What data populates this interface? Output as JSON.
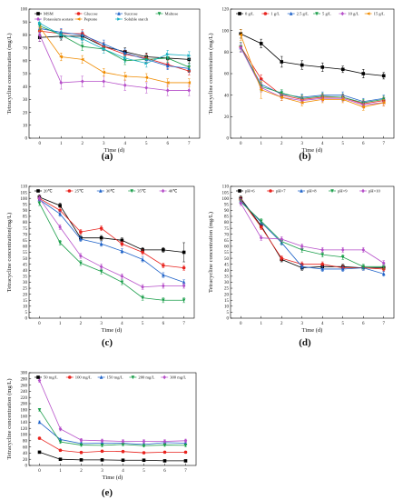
{
  "figure": {
    "panels": [
      "(a)",
      "(b)",
      "(c)",
      "(d)",
      "(e)"
    ]
  },
  "chart_data": [
    {
      "type": "line",
      "panel": "(a)",
      "xlabel": "Time (d)",
      "ylabel": "Tetracycline concentration (mg/L)",
      "x": [
        0,
        1,
        2,
        3,
        4,
        5,
        6,
        7
      ],
      "xlim": [
        -0.5,
        7.5
      ],
      "ylim": [
        0,
        100
      ],
      "yticks": [
        0,
        10,
        20,
        30,
        40,
        50,
        60,
        70,
        80,
        90,
        100
      ],
      "legend_position": "top",
      "legend_columns": 4,
      "series": [
        {
          "name": "MSM",
          "color": "#000000",
          "marker": "square",
          "values": [
            78,
            79,
            79,
            71,
            67,
            63,
            62,
            61
          ],
          "error": [
            3,
            3,
            3,
            3,
            3,
            3,
            3,
            3
          ]
        },
        {
          "name": "Glucose",
          "color": "#e8231e",
          "marker": "circle",
          "values": [
            83,
            81,
            81,
            71,
            65,
            62,
            57,
            52
          ],
          "error": [
            3,
            3,
            3,
            3,
            3,
            3,
            3,
            3
          ]
        },
        {
          "name": "Sucrose",
          "color": "#1f63c9",
          "marker": "triangle",
          "values": [
            85,
            82,
            80,
            73,
            66,
            61,
            56,
            54
          ],
          "error": [
            3,
            3,
            3,
            3,
            3,
            3,
            3,
            3
          ]
        },
        {
          "name": "Maltose",
          "color": "#1a9e4a",
          "marker": "triangle-down",
          "values": [
            87,
            80,
            71,
            69,
            60,
            61,
            62,
            55
          ],
          "error": [
            3,
            3,
            3,
            3,
            3,
            3,
            3,
            3
          ]
        },
        {
          "name": "Potassium acetate",
          "color": "#b64fc9",
          "marker": "diamond",
          "values": [
            80,
            43,
            44,
            44,
            41,
            39,
            37,
            37
          ],
          "error": [
            5,
            5,
            4,
            4,
            4,
            4,
            4,
            4
          ]
        },
        {
          "name": "Peptone",
          "color": "#f08c00",
          "marker": "triangle-left",
          "values": [
            86,
            63,
            61,
            51,
            48,
            47,
            43,
            43
          ],
          "error": [
            3,
            3,
            3,
            3,
            3,
            3,
            3,
            3
          ]
        },
        {
          "name": "Soluble starch",
          "color": "#17b0c4",
          "marker": "triangle-right",
          "values": [
            89,
            80,
            77,
            69,
            62,
            58,
            65,
            64
          ],
          "error": [
            3,
            3,
            3,
            3,
            3,
            3,
            3,
            3
          ]
        }
      ]
    },
    {
      "type": "line",
      "panel": "(b)",
      "xlabel": "Time (d)",
      "ylabel": "Tetracycline concentration (mg/L)",
      "x": [
        0,
        1,
        2,
        3,
        4,
        5,
        6,
        7
      ],
      "xlim": [
        -0.5,
        7.5
      ],
      "ylim": [
        0,
        120
      ],
      "yticks": [
        0,
        20,
        40,
        60,
        80,
        100,
        120
      ],
      "legend_position": "top",
      "legend_columns": 6,
      "series": [
        {
          "name": "0 g/L",
          "color": "#000000",
          "marker": "square",
          "values": [
            97,
            88,
            71,
            68,
            66,
            64,
            60,
            58
          ],
          "error": [
            4,
            4,
            5,
            4,
            4,
            3,
            4,
            3
          ]
        },
        {
          "name": "1 g/L",
          "color": "#e8231e",
          "marker": "circle",
          "values": [
            85,
            55,
            40,
            36,
            38,
            38,
            32,
            35
          ],
          "error": [
            4,
            4,
            3,
            3,
            3,
            3,
            3,
            3
          ]
        },
        {
          "name": "2.5 g/L",
          "color": "#1f63c9",
          "marker": "triangle",
          "values": [
            84,
            50,
            41,
            38,
            40,
            40,
            34,
            37
          ],
          "error": [
            4,
            4,
            3,
            3,
            3,
            3,
            3,
            3
          ]
        },
        {
          "name": "5 g/L",
          "color": "#1a9e4a",
          "marker": "triangle-down",
          "values": [
            85,
            48,
            42,
            37,
            39,
            38,
            33,
            36
          ],
          "error": [
            4,
            4,
            3,
            3,
            3,
            3,
            3,
            3
          ]
        },
        {
          "name": "10 g/L",
          "color": "#b64fc9",
          "marker": "diamond",
          "values": [
            84,
            47,
            38,
            35,
            37,
            37,
            31,
            33
          ],
          "error": [
            4,
            4,
            3,
            3,
            3,
            3,
            3,
            3
          ]
        },
        {
          "name": "15 g/L",
          "color": "#f08c00",
          "marker": "triangle-left",
          "values": [
            96,
            45,
            38,
            33,
            36,
            36,
            29,
            33
          ],
          "error": [
            5,
            8,
            3,
            3,
            3,
            3,
            3,
            3
          ]
        }
      ]
    },
    {
      "type": "line",
      "panel": "(c)",
      "xlabel": "Time (d)",
      "ylabel": "Tetracycline concentration(mg/L)",
      "x": [
        0,
        1,
        2,
        3,
        4,
        5,
        6,
        7
      ],
      "xlim": [
        -0.5,
        7.5
      ],
      "ylim": [
        0,
        110
      ],
      "yticks": [
        0,
        5,
        10,
        15,
        20,
        25,
        30,
        35,
        40,
        45,
        50,
        55,
        60,
        65,
        70,
        75,
        80,
        85,
        90,
        95,
        100,
        105,
        110
      ],
      "legend_position": "top",
      "legend_columns": 5,
      "series": [
        {
          "name": "20℃",
          "color": "#000000",
          "marker": "square",
          "values": [
            101,
            94,
            67,
            67,
            65,
            57,
            57,
            55
          ],
          "error": [
            2,
            2,
            2,
            2,
            2,
            2,
            2,
            8
          ]
        },
        {
          "name": "25℃",
          "color": "#e8231e",
          "marker": "circle",
          "values": [
            100,
            90,
            72,
            75,
            62,
            55,
            44,
            42
          ],
          "error": [
            2,
            2,
            2,
            2,
            2,
            2,
            2,
            2
          ]
        },
        {
          "name": "30℃",
          "color": "#1f63c9",
          "marker": "triangle",
          "values": [
            99,
            87,
            66,
            62,
            56,
            49,
            36,
            30
          ],
          "error": [
            2,
            2,
            2,
            2,
            2,
            2,
            2,
            2
          ]
        },
        {
          "name": "35℃",
          "color": "#1a9e4a",
          "marker": "triangle-down",
          "values": [
            96,
            63,
            46,
            39,
            30,
            17,
            15,
            15
          ],
          "error": [
            2,
            2,
            2,
            2,
            2,
            2,
            2,
            2
          ]
        },
        {
          "name": "40℃",
          "color": "#b64fc9",
          "marker": "diamond",
          "values": [
            100,
            76,
            52,
            43,
            35,
            26,
            27,
            27
          ],
          "error": [
            2,
            2,
            2,
            2,
            2,
            2,
            2,
            2
          ]
        }
      ]
    },
    {
      "type": "line",
      "panel": "(d)",
      "xlabel": "Time (d)",
      "ylabel": "Tetracycline concentration (mg/L)",
      "x": [
        0,
        1,
        2,
        3,
        4,
        5,
        6,
        7
      ],
      "xlim": [
        -0.5,
        7.5
      ],
      "ylim": [
        0,
        110
      ],
      "yticks": [
        0,
        5,
        10,
        15,
        20,
        25,
        30,
        35,
        40,
        45,
        50,
        55,
        60,
        65,
        70,
        75,
        80,
        85,
        90,
        95,
        100,
        105,
        110
      ],
      "legend_position": "top",
      "legend_columns": 5,
      "series": [
        {
          "name": "pH=6",
          "color": "#000000",
          "marker": "square",
          "values": [
            100,
            77,
            49,
            42,
            43,
            43,
            42,
            42
          ],
          "error": [
            2,
            2,
            2,
            2,
            2,
            2,
            2,
            2
          ]
        },
        {
          "name": "pH=7",
          "color": "#e8231e",
          "marker": "circle",
          "values": [
            99,
            76,
            50,
            45,
            45,
            42,
            42,
            41
          ],
          "error": [
            2,
            2,
            2,
            2,
            2,
            2,
            2,
            2
          ]
        },
        {
          "name": "pH=8",
          "color": "#1f63c9",
          "marker": "triangle",
          "values": [
            98,
            80,
            63,
            43,
            41,
            41,
            42,
            37
          ],
          "error": [
            2,
            2,
            2,
            2,
            2,
            2,
            2,
            2
          ]
        },
        {
          "name": "pH=9",
          "color": "#1a9e4a",
          "marker": "triangle-down",
          "values": [
            97,
            81,
            64,
            57,
            53,
            51,
            43,
            43
          ],
          "error": [
            2,
            2,
            2,
            2,
            2,
            2,
            2,
            2
          ]
        },
        {
          "name": "pH=10",
          "color": "#b64fc9",
          "marker": "diamond",
          "values": [
            96,
            67,
            66,
            60,
            57,
            57,
            57,
            46
          ],
          "error": [
            2,
            2,
            2,
            2,
            2,
            2,
            2,
            2
          ]
        }
      ]
    },
    {
      "type": "line",
      "panel": "(e)",
      "xlabel": "Time (d)",
      "ylabel": "Tetracycline concentration (mg/L)",
      "x": [
        0,
        1,
        2,
        3,
        4,
        5,
        6,
        7
      ],
      "xlim": [
        -0.5,
        7.5
      ],
      "ylim": [
        0,
        300
      ],
      "yticks": [
        0,
        20,
        40,
        60,
        80,
        100,
        120,
        140,
        160,
        180,
        200,
        220,
        240,
        260,
        280,
        300
      ],
      "legend_position": "top",
      "legend_columns": 5,
      "series": [
        {
          "name": "50 mg/L",
          "color": "#000000",
          "marker": "square",
          "values": [
            43,
            20,
            18,
            18,
            17,
            17,
            15,
            15
          ],
          "error": [
            2,
            2,
            2,
            2,
            2,
            2,
            2,
            2
          ]
        },
        {
          "name": "100 mg/L",
          "color": "#e8231e",
          "marker": "circle",
          "values": [
            88,
            49,
            42,
            46,
            45,
            41,
            43,
            43
          ],
          "error": [
            3,
            3,
            3,
            3,
            3,
            3,
            3,
            3
          ]
        },
        {
          "name": "150 mg/L",
          "color": "#1f63c9",
          "marker": "triangle",
          "values": [
            140,
            84,
            71,
            72,
            72,
            68,
            74,
            72
          ],
          "error": [
            4,
            4,
            4,
            4,
            4,
            4,
            4,
            4
          ]
        },
        {
          "name": "200 mg/L",
          "color": "#1a9e4a",
          "marker": "triangle-down",
          "values": [
            180,
            76,
            66,
            65,
            68,
            64,
            66,
            65
          ],
          "error": [
            4,
            4,
            4,
            4,
            4,
            4,
            4,
            4
          ]
        },
        {
          "name": "300 mg/L",
          "color": "#b64fc9",
          "marker": "diamond",
          "values": [
            275,
            118,
            82,
            80,
            78,
            78,
            78,
            80
          ],
          "error": [
            6,
            6,
            5,
            5,
            5,
            5,
            5,
            5
          ]
        }
      ]
    }
  ]
}
